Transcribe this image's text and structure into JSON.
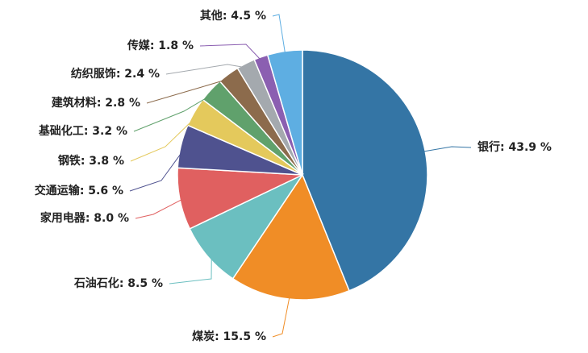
{
  "chart_data": {
    "type": "pie",
    "categories": [
      "银行",
      "煤炭",
      "石油石化",
      "家用电器",
      "交通运输",
      "钢铁",
      "基础化工",
      "建筑材料",
      "纺织服饰",
      "传媒",
      "其他"
    ],
    "values": [
      43.9,
      15.5,
      8.5,
      8.0,
      5.6,
      3.8,
      3.2,
      2.8,
      2.4,
      1.8,
      4.5
    ],
    "value_labels": [
      ": 43.9 %",
      ": 15.5 %",
      ": 8.5 %",
      ": 8.0 %",
      ": 5.6 %",
      ": 3.8 %",
      ": 3.2 %",
      ": 2.8 %",
      ": 2.4 %",
      ": 1.8 %",
      ": 4.5 %"
    ],
    "colors": [
      "#3475a5",
      "#f08d26",
      "#6bbfc0",
      "#e06060",
      "#4f528f",
      "#e4c95c",
      "#60a16c",
      "#8c6b4c",
      "#a4a9ae",
      "#8b5fb1",
      "#5eaee2"
    ]
  }
}
